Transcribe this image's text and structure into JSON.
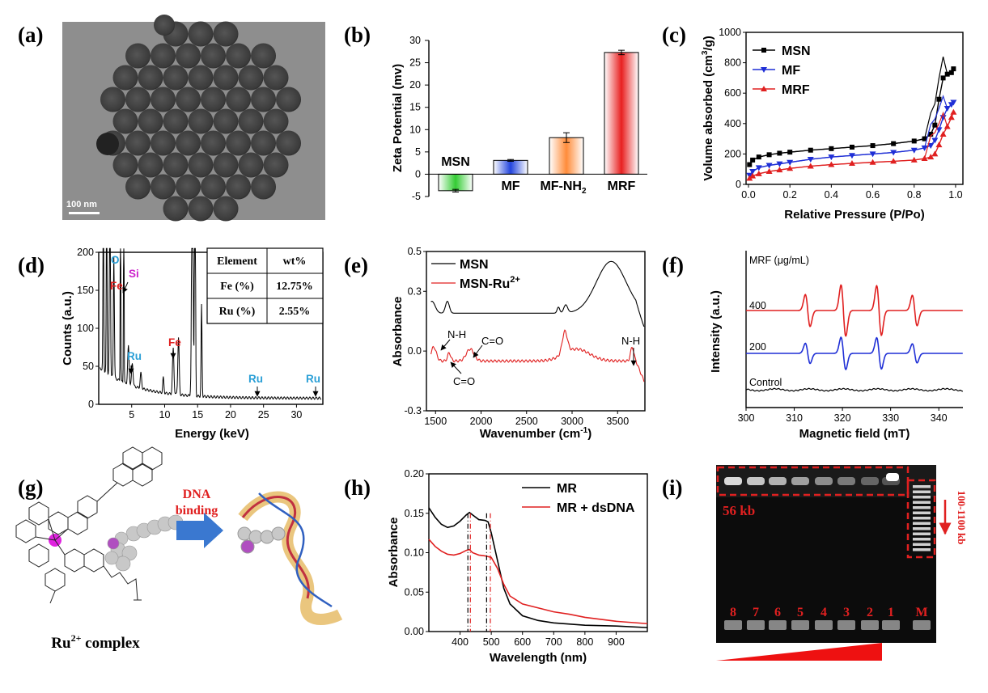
{
  "panel_labels": [
    "(a)",
    "(b)",
    "(c)",
    "(d)",
    "(e)",
    "(f)",
    "(g)",
    "(h)",
    "(i)"
  ],
  "tem": {
    "scale_bar": "100 nm"
  },
  "colors": {
    "black": "#000000",
    "red": "#e02020",
    "blue": "#1f2fd6",
    "green": "#33cc33",
    "cyan": "#2a9fd6",
    "magenta": "#cc22cc"
  },
  "chart_data": [
    {
      "panel": "b",
      "type": "bar",
      "categories": [
        "MSN",
        "MF",
        "MF-NH2",
        "MRF"
      ],
      "category_labels": [
        "MSN",
        "MF",
        "MF-NH",
        "MRF"
      ],
      "category_label_sub": [
        "",
        "",
        "2",
        ""
      ],
      "values": [
        -3.7,
        3.1,
        8.2,
        27.3
      ],
      "errors": [
        0.3,
        0.2,
        1.1,
        0.5
      ],
      "bar_colors": [
        "#33cc33",
        "#2244dd",
        "#ff8c3a",
        "#e82020"
      ],
      "ylabel": "Zeta Potential (mv)",
      "ylim": [
        -5,
        30
      ],
      "yticks": [
        "-5",
        "0",
        "5",
        "10",
        "15",
        "20",
        "25",
        "30"
      ]
    },
    {
      "panel": "c",
      "type": "line",
      "xlabel": "Relative Pressure (P/Po)",
      "ylabel": "Volume absorbed (cm",
      "ylabel_sup": "3",
      "ylabel_end": "/g)",
      "xlim": [
        0,
        1.0
      ],
      "ylim": [
        0,
        1000
      ],
      "xticks": [
        "0.0",
        "0.2",
        "0.4",
        "0.6",
        "0.8",
        "1.0"
      ],
      "yticks": [
        "0",
        "200",
        "400",
        "600",
        "800",
        "1000"
      ],
      "series": [
        {
          "name": "MSN",
          "color": "#000000",
          "marker": "square",
          "x": [
            0.005,
            0.02,
            0.05,
            0.1,
            0.15,
            0.2,
            0.3,
            0.4,
            0.5,
            0.6,
            0.7,
            0.8,
            0.85,
            0.88,
            0.9,
            0.92,
            0.94,
            0.96,
            0.98,
            0.99
          ],
          "y": [
            130,
            160,
            180,
            195,
            205,
            212,
            225,
            235,
            245,
            255,
            268,
            285,
            300,
            330,
            390,
            560,
            700,
            725,
            735,
            760
          ]
        },
        {
          "name": "MF",
          "color": "#1f2fd6",
          "marker": "triangle-down",
          "x": [
            0.005,
            0.02,
            0.05,
            0.1,
            0.15,
            0.2,
            0.3,
            0.4,
            0.5,
            0.6,
            0.7,
            0.8,
            0.85,
            0.88,
            0.9,
            0.92,
            0.94,
            0.96,
            0.98,
            0.99
          ],
          "y": [
            60,
            85,
            110,
            125,
            135,
            145,
            165,
            180,
            190,
            200,
            210,
            225,
            240,
            255,
            290,
            360,
            440,
            500,
            525,
            540
          ]
        },
        {
          "name": "MRF",
          "color": "#e02020",
          "marker": "triangle-up",
          "x": [
            0.005,
            0.02,
            0.05,
            0.1,
            0.15,
            0.2,
            0.3,
            0.4,
            0.5,
            0.6,
            0.7,
            0.8,
            0.85,
            0.88,
            0.9,
            0.92,
            0.94,
            0.96,
            0.98,
            0.99
          ],
          "y": [
            40,
            55,
            70,
            85,
            95,
            105,
            120,
            130,
            138,
            145,
            152,
            160,
            170,
            180,
            200,
            260,
            330,
            380,
            440,
            475
          ]
        }
      ]
    },
    {
      "panel": "d",
      "type": "line",
      "xlabel": "Energy (keV)",
      "ylabel": "Counts (a.u.)",
      "xlim": [
        0,
        34
      ],
      "ylim": [
        0,
        200
      ],
      "xticks": [
        "5",
        "10",
        "15",
        "20",
        "25",
        "30"
      ],
      "yticks": [
        "0",
        "50",
        "100",
        "150",
        "200"
      ],
      "annotations": [
        {
          "text": "O",
          "color": "#2a9fd6"
        },
        {
          "text": "Fe",
          "color": "#e02020"
        },
        {
          "text": "Si",
          "color": "#cc22cc"
        },
        {
          "text": "Ru",
          "color": "#2a9fd6"
        },
        {
          "text": "Fe",
          "color": "#e02020"
        },
        {
          "text": "Ru",
          "color": "#2a9fd6"
        },
        {
          "text": "Ru",
          "color": "#2a9fd6"
        }
      ],
      "table": {
        "headers": [
          "Element",
          "wt%"
        ],
        "rows": [
          [
            "Fe (%)",
            "12.75%"
          ],
          [
            "Ru (%)",
            "2.55%"
          ]
        ]
      }
    },
    {
      "panel": "e",
      "type": "line",
      "xlabel": "Wavenumber (cm",
      "xlabel_sup": "-1",
      "xlabel_end": ")",
      "ylabel": "Absorbance",
      "xlim": [
        1400,
        3800
      ],
      "ylim": [
        -0.3,
        0.5
      ],
      "xticks": [
        "1500",
        "2000",
        "2500",
        "3000",
        "3500"
      ],
      "yticks": [
        "-0.3",
        "0.0",
        "0.3",
        "0.5"
      ],
      "series": [
        {
          "name": "MSN",
          "color": "#000000"
        },
        {
          "name": "MSN-Ru",
          "name_sup": "2+",
          "color": "#e02020"
        }
      ],
      "annotations": [
        "N-H",
        "C=O",
        "C=O",
        "N-H"
      ]
    },
    {
      "panel": "f",
      "type": "line",
      "xlabel": "Magnetic field (mT)",
      "ylabel": "Intensity (a.u.)",
      "xlim": [
        300,
        345
      ],
      "xticks": [
        "300",
        "310",
        "320",
        "330",
        "340"
      ],
      "legend_title": "MRF (μg/mL)",
      "series": [
        {
          "name": "400",
          "color": "#e02020"
        },
        {
          "name": "200",
          "color": "#1f2fd6"
        },
        {
          "name": "Control",
          "color": "#000000"
        }
      ]
    },
    {
      "panel": "h",
      "type": "line",
      "xlabel": "Wavelength (nm)",
      "ylabel": "Absorbance",
      "xlim": [
        300,
        1000
      ],
      "ylim": [
        0,
        0.2
      ],
      "xticks": [
        "400",
        "500",
        "600",
        "700",
        "800",
        "900"
      ],
      "yticks": [
        "0.00",
        "0.05",
        "0.10",
        "0.15",
        "0.20"
      ],
      "series": [
        {
          "name": "MR",
          "color": "#000000",
          "x": [
            300,
            320,
            340,
            360,
            380,
            400,
            420,
            430,
            440,
            460,
            480,
            490,
            500,
            520,
            540,
            560,
            600,
            650,
            700,
            800,
            900,
            1000
          ],
          "y": [
            0.157,
            0.145,
            0.136,
            0.132,
            0.134,
            0.14,
            0.148,
            0.151,
            0.148,
            0.142,
            0.141,
            0.139,
            0.125,
            0.09,
            0.055,
            0.035,
            0.02,
            0.014,
            0.011,
            0.008,
            0.007,
            0.005
          ]
        },
        {
          "name": "MR + dsDNA",
          "color": "#e02020",
          "x": [
            300,
            320,
            340,
            360,
            380,
            400,
            420,
            430,
            440,
            460,
            480,
            500,
            520,
            540,
            560,
            600,
            650,
            700,
            750,
            800,
            900,
            1000
          ],
          "y": [
            0.117,
            0.108,
            0.102,
            0.098,
            0.097,
            0.099,
            0.103,
            0.104,
            0.1,
            0.097,
            0.096,
            0.094,
            0.08,
            0.06,
            0.045,
            0.035,
            0.03,
            0.025,
            0.022,
            0.018,
            0.013,
            0.01
          ]
        }
      ]
    }
  ],
  "scheme_g": {
    "caption": "Ru",
    "caption_sup": "2+",
    "caption_end": " complex",
    "arrow_label_1": "DNA",
    "arrow_label_2": "binding"
  },
  "gel_i": {
    "band_label": "56 kb",
    "ladder_label": "100-1100 kb",
    "lanes": [
      "8",
      "7",
      "6",
      "5",
      "4",
      "3",
      "2",
      "1",
      "M"
    ]
  }
}
